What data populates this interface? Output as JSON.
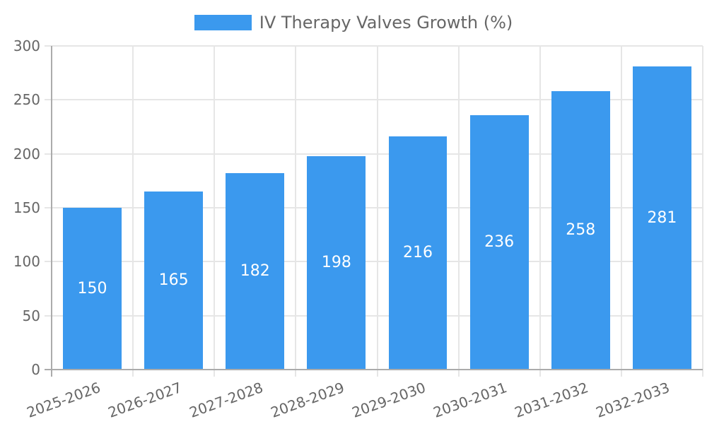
{
  "chart_data": {
    "type": "bar",
    "title": "IV Therapy Valves Growth (%)",
    "legend_position": "top",
    "categories": [
      "2025-2026",
      "2026-2027",
      "2027-2028",
      "2028-2029",
      "2029-2030",
      "2030-2031",
      "2031-2032",
      "2032-2033"
    ],
    "series": [
      {
        "name": "IV Therapy Valves Growth (%)",
        "values": [
          150,
          165,
          182,
          198,
          216,
          236,
          258,
          281
        ]
      }
    ],
    "xlabel": "",
    "ylabel": "",
    "ylim": [
      0,
      300
    ],
    "yticks": [
      0,
      50,
      100,
      150,
      200,
      250,
      300
    ],
    "grid": true,
    "x_label_rotation_deg": -20,
    "colors": {
      "bar": "#3B99EE",
      "grid": "#E6E6E6",
      "axis": "#ABABAB",
      "text": "#666666",
      "bar_label": "#FFFFFF",
      "background": "#FFFFFF"
    }
  }
}
